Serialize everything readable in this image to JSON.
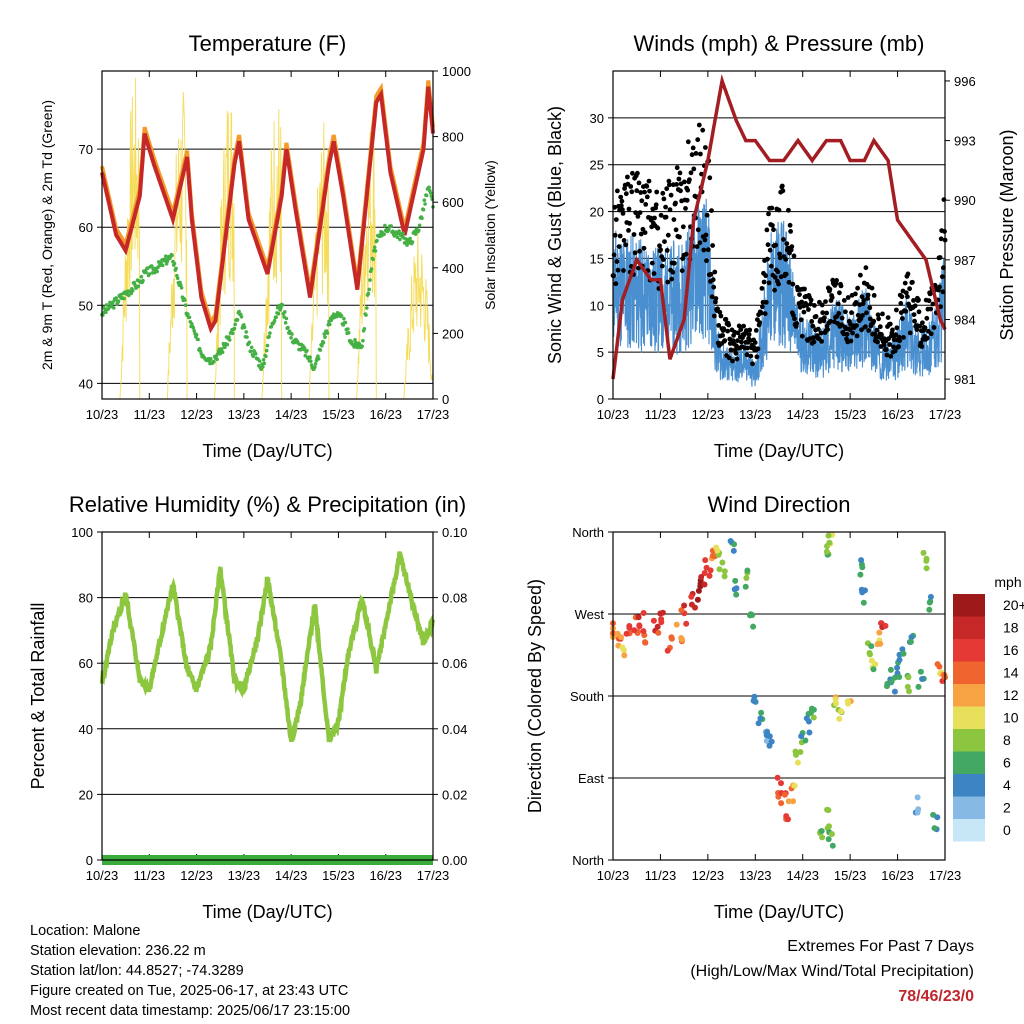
{
  "colors": {
    "temp_2m": "#c62828",
    "temp_9m": "#f39c2a",
    "dewpoint": "#45b045",
    "solar": "#f5dc5a",
    "wind": "#4a90d0",
    "gust": "#000000",
    "pressure": "#a31e22",
    "rh": "#8dc63f",
    "precip": "#3aaa3a",
    "extremes": "#c0272d"
  },
  "chart_data": [
    {
      "id": "temperature",
      "type": "line",
      "title": "Temperature (F)",
      "xlabel": "Time (Day/UTC)",
      "ylabel": "2m & 9m T (Red, Orange) & 2m Td (Green)",
      "ylabel_right": "Solar Insolation (Yellow)",
      "xticks": [
        "10/23",
        "11/23",
        "12/23",
        "13/23",
        "14/23",
        "15/23",
        "16/23",
        "17/23"
      ],
      "xlim": [
        0,
        7
      ],
      "ylim": [
        38,
        80
      ],
      "yticks": [
        40,
        50,
        60,
        70
      ],
      "ylim_right": [
        0,
        1000
      ],
      "yticks_right": [
        0,
        200,
        400,
        600,
        800,
        1000
      ],
      "grid": true,
      "series": [
        {
          "key": "temp",
          "x": [
            0,
            0.3,
            0.5,
            0.8,
            0.9,
            1.1,
            1.5,
            1.8,
            1.9,
            2.1,
            2.3,
            2.4,
            2.8,
            2.9,
            3.1,
            3.5,
            3.8,
            3.9,
            4.1,
            4.4,
            4.8,
            4.9,
            5.1,
            5.4,
            5.8,
            5.9,
            6.1,
            6.4,
            6.8,
            6.9,
            7
          ],
          "y": [
            67,
            59,
            57,
            64,
            72,
            68,
            61,
            69,
            61,
            51,
            47,
            48,
            68,
            71,
            61,
            54,
            64,
            70,
            62,
            51,
            68,
            71,
            64,
            52,
            76,
            77,
            67,
            59,
            70,
            78,
            72
          ]
        },
        {
          "key": "dew",
          "x": [
            0,
            0.4,
            0.8,
            0.9,
            1.2,
            1.4,
            1.5,
            1.8,
            2.1,
            2.3,
            2.5,
            2.8,
            2.9,
            3.1,
            3.4,
            3.6,
            3.8,
            4.0,
            4.3,
            4.5,
            4.7,
            4.9,
            5.1,
            5.3,
            5.5,
            5.7,
            5.8,
            6.0,
            6.3,
            6.5,
            6.7,
            6.9,
            7
          ],
          "y": [
            49,
            51,
            53,
            54,
            55,
            56,
            56,
            49,
            44,
            43,
            44,
            47,
            49,
            45,
            42,
            48,
            50,
            46,
            44,
            42,
            46,
            49,
            48,
            45,
            45,
            55,
            58,
            60,
            59,
            58,
            60,
            65,
            63
          ]
        },
        {
          "key": "solar",
          "x": [
            0.7,
            1.7,
            2.7,
            3.7,
            4.7,
            5.7,
            6.7
          ],
          "y": [
            990,
            960,
            990,
            960,
            850,
            880,
            520
          ]
        }
      ]
    },
    {
      "id": "winds",
      "type": "line",
      "title": "Winds (mph) & Pressure (mb)",
      "xlabel": "Time (Day/UTC)",
      "ylabel": "Sonic Wind & Gust (Blue, Black)",
      "ylabel_right": "Station Pressure (Maroon)",
      "xticks": [
        "10/23",
        "11/23",
        "12/23",
        "13/23",
        "14/23",
        "15/23",
        "16/23",
        "17/23"
      ],
      "xlim": [
        0,
        7
      ],
      "ylim": [
        0,
        35
      ],
      "yticks": [
        0,
        5,
        10,
        15,
        20,
        25,
        30
      ],
      "ylim_right": [
        980,
        996.5
      ],
      "yticks_right": [
        981,
        984,
        987,
        990,
        993,
        996
      ],
      "grid": true,
      "series": [
        {
          "key": "wind",
          "x": [
            0,
            0.5,
            1.0,
            1.5,
            1.8,
            2.0,
            2.2,
            2.5,
            2.8,
            3.0,
            3.3,
            3.6,
            3.9,
            4.1,
            4.4,
            4.7,
            5.0,
            5.3,
            5.6,
            5.9,
            6.2,
            6.5,
            6.8,
            7
          ],
          "y": [
            15,
            14,
            13,
            14,
            18,
            17,
            6,
            4,
            5,
            3,
            14,
            16,
            8,
            7,
            6,
            9,
            7,
            10,
            6,
            5,
            9,
            6,
            8,
            13
          ]
        },
        {
          "key": "gust",
          "x": [
            0,
            0.5,
            1.0,
            1.5,
            1.8,
            2.0,
            2.2,
            2.5,
            2.8,
            3.0,
            3.3,
            3.6,
            3.9,
            4.1,
            4.4,
            4.7,
            5.0,
            5.3,
            5.6,
            5.9,
            6.2,
            6.5,
            6.8,
            7
          ],
          "y": [
            22,
            24,
            21,
            25,
            30,
            26,
            10,
            7,
            8,
            6,
            20,
            23,
            12,
            11,
            10,
            13,
            10,
            14,
            9,
            8,
            13,
            10,
            12,
            22
          ]
        },
        {
          "key": "pressure",
          "x": [
            0,
            0.2,
            0.5,
            0.8,
            1.0,
            1.2,
            1.5,
            1.7,
            2.0,
            2.3,
            2.6,
            2.8,
            3.0,
            3.3,
            3.6,
            3.9,
            4.2,
            4.5,
            4.8,
            5.0,
            5.3,
            5.5,
            5.8,
            6.0,
            6.3,
            6.6,
            6.9,
            7
          ],
          "y": [
            981,
            985,
            987,
            986,
            986,
            982,
            984,
            989,
            992,
            996,
            994,
            993,
            993,
            992,
            992,
            993,
            992,
            993,
            993,
            992,
            992,
            993,
            992,
            989,
            988,
            987,
            984,
            983.5
          ]
        }
      ]
    },
    {
      "id": "humidity",
      "type": "line",
      "title": "Relative Humidity (%) & Precipitation (in)",
      "xlabel": "Time (Day/UTC)",
      "ylabel": "Percent & Total Rainfall",
      "xticks": [
        "10/23",
        "11/23",
        "12/23",
        "13/23",
        "14/23",
        "15/23",
        "16/23",
        "17/23"
      ],
      "xlim": [
        0,
        7
      ],
      "ylim": [
        0,
        100
      ],
      "yticks": [
        0,
        20,
        40,
        60,
        80,
        100
      ],
      "ylim_right": [
        0,
        0.1
      ],
      "yticks_right": [
        "0.00",
        "0.02",
        "0.04",
        "0.06",
        "0.08",
        "0.10"
      ],
      "grid": true,
      "series": [
        {
          "key": "rh",
          "x": [
            0,
            0.2,
            0.5,
            0.8,
            1.0,
            1.2,
            1.5,
            1.8,
            2.0,
            2.3,
            2.5,
            2.8,
            3.0,
            3.3,
            3.5,
            3.8,
            4.0,
            4.2,
            4.5,
            4.8,
            5.0,
            5.2,
            5.5,
            5.8,
            6.0,
            6.3,
            6.5,
            6.8,
            7
          ],
          "y": [
            54,
            68,
            81,
            55,
            52,
            65,
            84,
            58,
            52,
            65,
            89,
            55,
            52,
            68,
            86,
            60,
            36,
            48,
            78,
            36,
            42,
            62,
            80,
            58,
            72,
            93,
            82,
            66,
            73
          ]
        },
        {
          "key": "precip",
          "x": [
            0,
            7
          ],
          "y": [
            0,
            0
          ]
        }
      ]
    },
    {
      "id": "direction",
      "type": "scatter",
      "title": "Wind Direction",
      "xlabel": "Time (Day/UTC)",
      "ylabel": "Direction (Colored By Speed)",
      "xticks": [
        "10/23",
        "11/23",
        "12/23",
        "13/23",
        "14/23",
        "15/23",
        "16/23",
        "17/23"
      ],
      "xlim": [
        0,
        7
      ],
      "ylim": [
        0,
        360
      ],
      "yticks": [
        {
          "value": 0,
          "label": "North"
        },
        {
          "value": 90,
          "label": "East"
        },
        {
          "value": 180,
          "label": "South"
        },
        {
          "value": 270,
          "label": "West"
        },
        {
          "value": 360,
          "label": "North"
        }
      ],
      "grid": true,
      "colorbar": {
        "title": "mph",
        "labels": [
          "20+",
          "18",
          "16",
          "14",
          "12",
          "10",
          "8",
          "6",
          "4",
          "2",
          "0"
        ],
        "colors": [
          "#9e1a1a",
          "#c62828",
          "#e53935",
          "#f0642f",
          "#f7a344",
          "#e8e05a",
          "#8cc63f",
          "#43a862",
          "#3c84c4",
          "#86b9e4",
          "#c8e7f6"
        ]
      },
      "points": [
        {
          "x": 0.0,
          "y": 250,
          "s": 13
        },
        {
          "x": 0.1,
          "y": 240,
          "s": 14
        },
        {
          "x": 0.2,
          "y": 235,
          "s": 12
        },
        {
          "x": 0.3,
          "y": 248,
          "s": 15
        },
        {
          "x": 0.5,
          "y": 258,
          "s": 16
        },
        {
          "x": 0.6,
          "y": 262,
          "s": 17
        },
        {
          "x": 0.7,
          "y": 245,
          "s": 15
        },
        {
          "x": 0.9,
          "y": 255,
          "s": 16
        },
        {
          "x": 1.0,
          "y": 265,
          "s": 17
        },
        {
          "x": 1.2,
          "y": 240,
          "s": 14
        },
        {
          "x": 1.4,
          "y": 250,
          "s": 13
        },
        {
          "x": 1.5,
          "y": 270,
          "s": 16
        },
        {
          "x": 1.7,
          "y": 285,
          "s": 18
        },
        {
          "x": 1.8,
          "y": 295,
          "s": 20
        },
        {
          "x": 1.9,
          "y": 305,
          "s": 18
        },
        {
          "x": 2.0,
          "y": 320,
          "s": 16
        },
        {
          "x": 2.1,
          "y": 330,
          "s": 14
        },
        {
          "x": 2.2,
          "y": 345,
          "s": 10
        },
        {
          "x": 2.3,
          "y": 320,
          "s": 8
        },
        {
          "x": 2.5,
          "y": 340,
          "s": 6
        },
        {
          "x": 2.6,
          "y": 300,
          "s": 5
        },
        {
          "x": 2.8,
          "y": 310,
          "s": 7
        },
        {
          "x": 2.9,
          "y": 260,
          "s": 6
        },
        {
          "x": 3.0,
          "y": 180,
          "s": 5
        },
        {
          "x": 3.1,
          "y": 160,
          "s": 4
        },
        {
          "x": 3.2,
          "y": 140,
          "s": 4
        },
        {
          "x": 3.3,
          "y": 130,
          "s": 3
        },
        {
          "x": 3.5,
          "y": 80,
          "s": 14
        },
        {
          "x": 3.6,
          "y": 65,
          "s": 15
        },
        {
          "x": 3.7,
          "y": 55,
          "s": 14
        },
        {
          "x": 3.8,
          "y": 75,
          "s": 12
        },
        {
          "x": 3.9,
          "y": 110,
          "s": 8
        },
        {
          "x": 4.0,
          "y": 130,
          "s": 6
        },
        {
          "x": 4.1,
          "y": 150,
          "s": 5
        },
        {
          "x": 4.2,
          "y": 165,
          "s": 6
        },
        {
          "x": 4.4,
          "y": 30,
          "s": 7
        },
        {
          "x": 4.5,
          "y": 45,
          "s": 9
        },
        {
          "x": 4.6,
          "y": 20,
          "s": 8
        },
        {
          "x": 4.5,
          "y": 340,
          "s": 7
        },
        {
          "x": 4.6,
          "y": 355,
          "s": 9
        },
        {
          "x": 4.7,
          "y": 170,
          "s": 10
        },
        {
          "x": 4.8,
          "y": 160,
          "s": 9
        },
        {
          "x": 5.0,
          "y": 165,
          "s": 11
        },
        {
          "x": 5.2,
          "y": 320,
          "s": 6
        },
        {
          "x": 5.3,
          "y": 290,
          "s": 5
        },
        {
          "x": 5.4,
          "y": 230,
          "s": 7
        },
        {
          "x": 5.5,
          "y": 210,
          "s": 8
        },
        {
          "x": 5.6,
          "y": 240,
          "s": 12
        },
        {
          "x": 5.7,
          "y": 260,
          "s": 16
        },
        {
          "x": 5.8,
          "y": 200,
          "s": 4
        },
        {
          "x": 5.9,
          "y": 190,
          "s": 6
        },
        {
          "x": 6.0,
          "y": 210,
          "s": 5
        },
        {
          "x": 6.1,
          "y": 230,
          "s": 4
        },
        {
          "x": 6.2,
          "y": 195,
          "s": 7
        },
        {
          "x": 6.3,
          "y": 240,
          "s": 5
        },
        {
          "x": 6.4,
          "y": 60,
          "s": 3
        },
        {
          "x": 6.5,
          "y": 200,
          "s": 6
        },
        {
          "x": 6.6,
          "y": 330,
          "s": 7
        },
        {
          "x": 6.7,
          "y": 280,
          "s": 6
        },
        {
          "x": 6.8,
          "y": 40,
          "s": 5
        },
        {
          "x": 6.9,
          "y": 210,
          "s": 12
        },
        {
          "x": 7.0,
          "y": 195,
          "s": 14
        }
      ]
    }
  ],
  "info": {
    "location": "Location: Malone",
    "elevation": "Station elevation: 236.22 m",
    "latlon": "Station lat/lon: 44.8527; -74.3289",
    "created": "Figure created on Tue, 2025-06-17, at 23:43 UTC",
    "timestamp": "Most recent data timestamp: 2025/06/17 23:15:00"
  },
  "extremes": {
    "line1": "Extremes For Past 7 Days",
    "line2": "(High/Low/Max Wind/Total Precipitation)",
    "values": "78/46/23/0"
  }
}
